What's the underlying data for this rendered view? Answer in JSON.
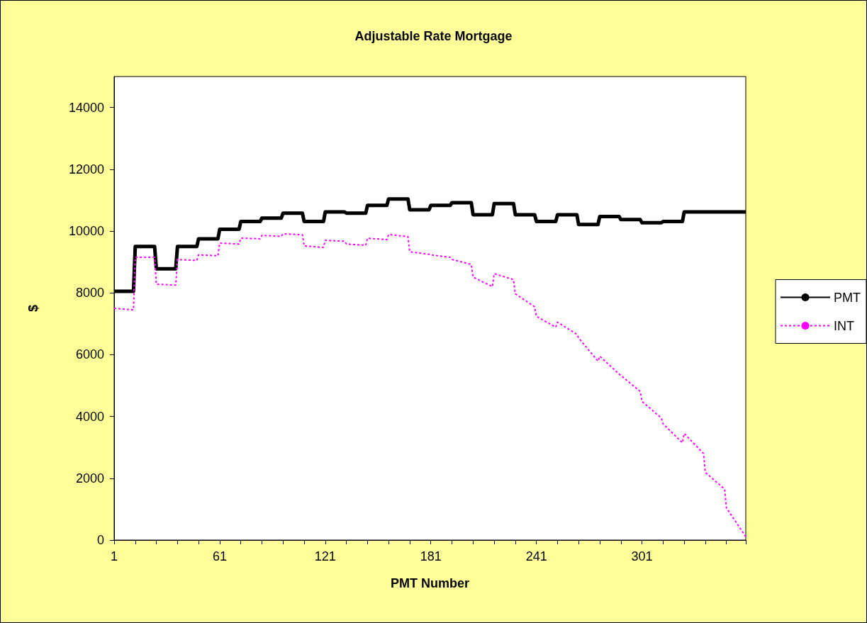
{
  "chart_data": {
    "type": "line",
    "title": "Adjustable Rate Mortgage",
    "xlabel": "PMT Number",
    "ylabel": "$",
    "xlim": [
      1,
      360
    ],
    "xticks": [
      1,
      {
        "value": 13,
        "label": null
      },
      {
        "value": 25,
        "label": null
      },
      {
        "value": 37,
        "label": null
      },
      {
        "value": 49,
        "label": null
      },
      61,
      {
        "value": 73,
        "label": null
      },
      {
        "value": 85,
        "label": null
      },
      {
        "value": 97,
        "label": null
      },
      {
        "value": 109,
        "label": null
      },
      121,
      {
        "value": 133,
        "label": null
      },
      {
        "value": 145,
        "label": null
      },
      {
        "value": 157,
        "label": null
      },
      {
        "value": 169,
        "label": null
      },
      181,
      {
        "value": 193,
        "label": null
      },
      {
        "value": 205,
        "label": null
      },
      {
        "value": 217,
        "label": null
      },
      {
        "value": 229,
        "label": null
      },
      241,
      {
        "value": 253,
        "label": null
      },
      {
        "value": 265,
        "label": null
      },
      {
        "value": 277,
        "label": null
      },
      {
        "value": 289,
        "label": null
      },
      301,
      {
        "value": 313,
        "label": null
      },
      {
        "value": 325,
        "label": null
      },
      {
        "value": 337,
        "label": null
      },
      {
        "value": 349,
        "label": null
      },
      {
        "value": 360,
        "label": null
      }
    ],
    "ylim": [
      0,
      15000
    ],
    "yticks": [
      0,
      2000,
      4000,
      6000,
      8000,
      10000,
      12000,
      14000
    ],
    "grid": false,
    "legend": "right",
    "marker": "none",
    "series": [
      {
        "name": "PMT",
        "color": "#000000",
        "line_style": "solid",
        "x": [
          1,
          12,
          13,
          24,
          25,
          36,
          37,
          48,
          49,
          60,
          61,
          72,
          73,
          84,
          85,
          96,
          97,
          108,
          109,
          120,
          121,
          132,
          133,
          144,
          145,
          156,
          157,
          168,
          169,
          180,
          181,
          192,
          193,
          204,
          205,
          216,
          217,
          228,
          229,
          240,
          241,
          252,
          253,
          264,
          265,
          276,
          277,
          288,
          289,
          300,
          301,
          312,
          313,
          324,
          325,
          360
        ],
        "values": [
          8050,
          8050,
          9500,
          9500,
          8780,
          8780,
          9500,
          9500,
          9750,
          9750,
          10060,
          10060,
          10310,
          10310,
          10420,
          10420,
          10580,
          10580,
          10310,
          10310,
          10620,
          10620,
          10580,
          10580,
          10830,
          10830,
          11040,
          11040,
          10690,
          10690,
          10830,
          10830,
          10920,
          10920,
          10530,
          10530,
          10890,
          10890,
          10530,
          10530,
          10310,
          10310,
          10530,
          10530,
          10210,
          10210,
          10470,
          10470,
          10370,
          10370,
          10270,
          10270,
          10310,
          10310,
          10620,
          10620
        ]
      },
      {
        "name": "INT",
        "color": "#ff00ff",
        "line_style": "dotted",
        "x": [
          1,
          12,
          13,
          24,
          25,
          36,
          37,
          48,
          49,
          60,
          61,
          72,
          73,
          84,
          85,
          96,
          97,
          108,
          109,
          120,
          121,
          132,
          133,
          144,
          145,
          156,
          157,
          168,
          169,
          180,
          181,
          192,
          193,
          204,
          205,
          216,
          217,
          228,
          229,
          240,
          241,
          252,
          253,
          264,
          265,
          276,
          277,
          288,
          289,
          300,
          301,
          312,
          313,
          324,
          325,
          336,
          337,
          348,
          349,
          360
        ],
        "values": [
          7500,
          7450,
          9150,
          9150,
          8280,
          8250,
          9080,
          9050,
          9230,
          9200,
          9610,
          9580,
          9770,
          9750,
          9860,
          9830,
          9910,
          9880,
          9520,
          9470,
          9700,
          9670,
          9580,
          9540,
          9770,
          9720,
          9890,
          9820,
          9330,
          9250,
          9230,
          9150,
          9080,
          8920,
          8510,
          8200,
          8620,
          8430,
          7970,
          7550,
          7240,
          6890,
          7050,
          6660,
          6540,
          5790,
          5950,
          5370,
          5330,
          4810,
          4490,
          3950,
          3760,
          3150,
          3450,
          2800,
          2190,
          1650,
          1040,
          110
        ]
      }
    ]
  }
}
